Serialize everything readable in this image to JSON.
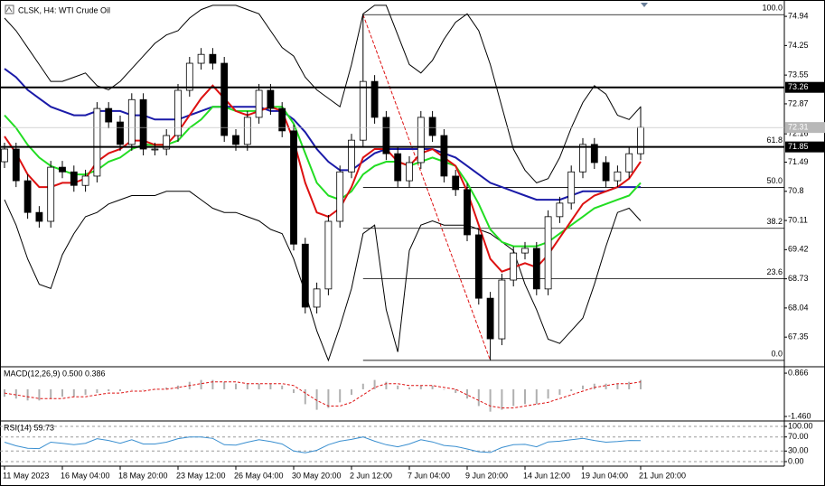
{
  "chart_data": [
    {
      "type": "candlestick",
      "title": "CLSK, H4: WTI Crude Oil",
      "categories": [
        "11 May 2023",
        null,
        null,
        null,
        null,
        "16 May 04:00",
        null,
        null,
        null,
        null,
        "18 May 20:00",
        null,
        null,
        null,
        null,
        "23 May 12:00",
        null,
        null,
        null,
        null,
        "26 May 04:00",
        null,
        null,
        null,
        null,
        "30 May 20:00",
        null,
        null,
        null,
        null,
        "2 Jun 12:00",
        null,
        null,
        null,
        null,
        "7 Jun 04:00",
        null,
        null,
        null,
        null,
        "9 Jun 20:00",
        null,
        null,
        null,
        null,
        "14 Jun 12:00",
        null,
        null,
        null,
        null,
        "19 Jun 04:00",
        null,
        null,
        null,
        null,
        "21 Jun 20:00"
      ],
      "open": [
        71.5,
        71.8,
        71.05,
        70.3,
        70.09,
        71.37,
        71.26,
        70.94,
        71.16,
        72.76,
        72.44,
        71.91,
        72.97,
        71.8,
        71.8,
        72.12,
        73.19,
        73.83,
        74.04,
        73.83,
        72.12,
        71.91,
        72.55,
        73.19,
        72.76,
        72.23,
        69.55,
        68.06,
        68.49,
        70.09,
        71.26,
        72.01,
        73.4,
        72.55,
        71.69,
        71.05,
        71.48,
        72.55,
        72.12,
        71.16,
        70.84,
        69.77,
        68.27,
        67.31,
        68.7,
        69.34,
        69.45,
        68.49,
        70.2,
        70.52,
        71.26,
        71.91,
        71.48,
        71.05,
        71.26,
        71.69
      ],
      "high": [
        71.95,
        71.95,
        71.2,
        70.45,
        71.52,
        71.52,
        71.41,
        71.31,
        72.91,
        72.91,
        72.59,
        73.12,
        73.12,
        71.95,
        72.27,
        73.34,
        73.98,
        74.19,
        74.19,
        73.98,
        72.27,
        72.7,
        73.34,
        73.34,
        72.91,
        72.38,
        69.7,
        68.64,
        70.24,
        71.41,
        72.16,
        74.98,
        73.55,
        72.7,
        71.84,
        71.63,
        72.7,
        72.7,
        72.27,
        71.31,
        70.99,
        69.92,
        68.42,
        68.85,
        69.49,
        69.6,
        69.6,
        70.35,
        70.67,
        71.41,
        72.06,
        72.06,
        71.63,
        71.41,
        71.84,
        72.81
      ],
      "low": [
        71.35,
        70.9,
        70.15,
        69.94,
        69.94,
        71.11,
        70.79,
        70.79,
        71.01,
        72.29,
        71.76,
        71.76,
        71.65,
        71.65,
        71.65,
        71.97,
        73.04,
        73.68,
        73.68,
        71.97,
        71.76,
        71.76,
        72.4,
        72.61,
        72.08,
        69.4,
        67.91,
        67.91,
        68.34,
        69.94,
        71.11,
        71.86,
        72.4,
        71.54,
        70.9,
        70.9,
        71.33,
        71.97,
        71.01,
        70.69,
        69.62,
        68.12,
        66.8,
        67.16,
        68.55,
        69.19,
        68.34,
        68.34,
        70.05,
        70.37,
        71.11,
        71.33,
        70.9,
        70.9,
        71.11,
        71.54
      ],
      "close": [
        71.8,
        71.05,
        70.3,
        70.09,
        71.37,
        71.26,
        70.94,
        71.16,
        72.76,
        72.44,
        71.91,
        72.97,
        71.8,
        71.8,
        72.12,
        73.19,
        73.83,
        74.04,
        73.83,
        72.12,
        71.91,
        72.55,
        73.19,
        72.76,
        72.23,
        69.55,
        68.06,
        68.49,
        70.09,
        71.26,
        72.01,
        73.4,
        72.55,
        71.69,
        71.05,
        71.48,
        72.55,
        72.12,
        71.16,
        70.84,
        69.77,
        68.27,
        67.31,
        68.7,
        69.34,
        69.45,
        68.49,
        70.2,
        70.52,
        71.26,
        71.91,
        71.48,
        71.05,
        71.26,
        71.69,
        72.31
      ],
      "up_color": "#ffffff",
      "down_color": "#000000",
      "overlays": [
        {
          "color": "#000000",
          "values": [
            74.9,
            74.6,
            74.2,
            73.8,
            73.4,
            73.4,
            73.5,
            73.6,
            73.3,
            73.2,
            73.4,
            73.7,
            74.0,
            74.3,
            74.5,
            74.6,
            74.9,
            75.1,
            75.2,
            75.2,
            75.2,
            75.1,
            75.0,
            74.6,
            74.2,
            74.0,
            73.5,
            73.2,
            73.0,
            72.8,
            73.8,
            75.0,
            75.2,
            75.2,
            74.5,
            73.8,
            73.6,
            73.9,
            74.4,
            74.8,
            75.0,
            74.6,
            73.8,
            72.8,
            71.8,
            71.3,
            71.0,
            71.1,
            71.6,
            72.3,
            72.9,
            73.3,
            73.1,
            72.6,
            72.5,
            72.8
          ]
        },
        {
          "color": "#000000",
          "values": [
            70.6,
            70.0,
            69.2,
            68.6,
            68.5,
            69.3,
            69.8,
            70.2,
            70.3,
            70.5,
            70.6,
            70.7,
            70.7,
            70.7,
            70.8,
            70.8,
            70.8,
            70.6,
            70.4,
            70.3,
            70.3,
            70.2,
            70.1,
            69.9,
            69.8,
            69.2,
            68.4,
            67.5,
            66.8,
            67.6,
            68.5,
            69.8,
            70.0,
            68.0,
            67.0,
            69.4,
            70.0,
            70.1,
            70.0,
            70.0,
            70.0,
            69.9,
            69.8,
            69.6,
            69.4,
            68.6,
            68.0,
            67.3,
            67.2,
            67.5,
            67.8,
            68.6,
            69.5,
            70.3,
            70.4,
            70.1
          ]
        },
        {
          "color": "#1a1aa8",
          "values": [
            73.7,
            73.5,
            73.2,
            73.0,
            72.8,
            72.7,
            72.6,
            72.6,
            72.7,
            72.7,
            72.7,
            72.6,
            72.6,
            72.5,
            72.5,
            72.5,
            72.6,
            72.7,
            72.8,
            72.8,
            72.8,
            72.8,
            72.8,
            72.7,
            72.7,
            72.5,
            72.2,
            71.8,
            71.5,
            71.3,
            71.3,
            71.5,
            71.7,
            71.8,
            71.8,
            71.8,
            71.8,
            71.8,
            71.7,
            71.6,
            71.4,
            71.2,
            71.0,
            70.9,
            70.8,
            70.7,
            70.6,
            70.6,
            70.6,
            70.7,
            70.8,
            70.8,
            70.8,
            70.9,
            70.9,
            70.9
          ]
        },
        {
          "color": "#22dd22",
          "values": [
            72.6,
            72.3,
            71.9,
            71.6,
            71.4,
            71.3,
            71.2,
            71.2,
            71.3,
            71.5,
            71.6,
            71.8,
            71.9,
            71.9,
            71.9,
            72.0,
            72.3,
            72.5,
            72.8,
            72.8,
            72.7,
            72.7,
            72.7,
            72.8,
            72.8,
            72.4,
            71.7,
            71.0,
            70.7,
            70.6,
            70.8,
            71.2,
            71.4,
            71.5,
            71.5,
            71.4,
            71.5,
            71.6,
            71.5,
            71.4,
            71.0,
            70.5,
            69.9,
            69.6,
            69.5,
            69.5,
            69.5,
            69.6,
            69.8,
            70.0,
            70.2,
            70.4,
            70.5,
            70.6,
            70.7,
            71.0
          ]
        },
        {
          "color": "#dd1111",
          "values": [
            72.1,
            71.7,
            71.2,
            70.9,
            70.9,
            71.0,
            71.0,
            71.1,
            71.5,
            71.7,
            71.8,
            72.0,
            72.0,
            71.9,
            71.9,
            72.2,
            72.6,
            73.0,
            73.3,
            73.0,
            72.7,
            72.6,
            72.7,
            72.8,
            72.7,
            72.0,
            71.0,
            70.3,
            70.2,
            70.4,
            70.9,
            71.6,
            71.8,
            71.8,
            71.5,
            71.4,
            71.7,
            71.8,
            71.6,
            71.4,
            70.8,
            70.0,
            69.2,
            68.9,
            69.0,
            69.1,
            69.0,
            69.3,
            69.7,
            70.1,
            70.5,
            70.7,
            70.8,
            70.9,
            71.1,
            71.5
          ]
        }
      ],
      "ylim": [
        66.67,
        75.22
      ],
      "yticks": [
        74.94,
        74.25,
        73.55,
        72.87,
        72.16,
        71.49,
        70.8,
        70.11,
        69.42,
        68.73,
        68.04,
        67.35
      ],
      "levels": [
        73.26,
        71.85
      ],
      "last_price": 72.31,
      "fibonacci": {
        "high": 74.98,
        "low": 66.8,
        "color": "#dd1111",
        "levels": [
          {
            "value": 100,
            "label": "100.0"
          },
          {
            "value": 61.8,
            "label": "61.8"
          },
          {
            "value": 50,
            "label": "50.0"
          },
          {
            "value": 38.2,
            "label": "38.2"
          },
          {
            "value": 23.6,
            "label": "23.6"
          },
          {
            "value": 0,
            "label": "0.0"
          }
        ]
      }
    },
    {
      "type": "macd",
      "label": "MACD(12,26,9) 0.500 0.386",
      "histogram": [
        -0.4,
        -0.5,
        -0.6,
        -0.6,
        -0.5,
        -0.4,
        -0.4,
        -0.3,
        -0.2,
        -0.1,
        -0.1,
        0.0,
        0.0,
        0.0,
        0.1,
        0.2,
        0.4,
        0.5,
        0.5,
        0.4,
        0.3,
        0.3,
        0.3,
        0.3,
        0.2,
        -0.2,
        -0.8,
        -1.1,
        -1.0,
        -0.7,
        -0.3,
        0.3,
        0.5,
        0.4,
        0.2,
        0.1,
        0.2,
        0.2,
        0.0,
        -0.2,
        -0.5,
        -0.9,
        -1.2,
        -1.1,
        -0.9,
        -0.8,
        -0.8,
        -0.5,
        -0.3,
        -0.1,
        0.2,
        0.3,
        0.3,
        0.3,
        0.4,
        0.5
      ],
      "signal": [
        -0.2,
        -0.3,
        -0.4,
        -0.5,
        -0.5,
        -0.5,
        -0.4,
        -0.4,
        -0.3,
        -0.2,
        -0.2,
        -0.1,
        -0.1,
        0.0,
        0.0,
        0.1,
        0.2,
        0.3,
        0.4,
        0.4,
        0.4,
        0.3,
        0.3,
        0.3,
        0.3,
        0.2,
        -0.2,
        -0.6,
        -0.9,
        -0.9,
        -0.7,
        -0.3,
        0.1,
        0.3,
        0.3,
        0.2,
        0.2,
        0.2,
        0.1,
        0.0,
        -0.3,
        -0.6,
        -0.9,
        -1.0,
        -1.0,
        -0.9,
        -0.8,
        -0.7,
        -0.5,
        -0.3,
        -0.1,
        0.1,
        0.2,
        0.3,
        0.3,
        0.4
      ],
      "histogram_color": "#b0b0b0",
      "signal_color": "#dd1111",
      "ylim": [
        -1.7,
        1.16
      ],
      "yticks": [
        0.866,
        {
          "value": -1.46,
          "label": "-1.460"
        }
      ]
    },
    {
      "type": "rsi",
      "label": "RSI(14) 59.73",
      "values": [
        55,
        45,
        38,
        37,
        55,
        52,
        48,
        52,
        65,
        60,
        52,
        62,
        50,
        50,
        55,
        65,
        70,
        70,
        66,
        48,
        47,
        55,
        62,
        57,
        50,
        30,
        25,
        32,
        48,
        58,
        63,
        70,
        58,
        48,
        42,
        50,
        62,
        56,
        46,
        43,
        36,
        28,
        26,
        40,
        48,
        49,
        42,
        56,
        58,
        62,
        66,
        60,
        55,
        57,
        60,
        59.73
      ],
      "color": "#3a8fd0",
      "ylim": [
        -12.8,
        112.8
      ],
      "yticks": [
        {
          "value": 100,
          "label": "100.00"
        },
        {
          "value": 70,
          "label": "70.00"
        },
        {
          "value": 30,
          "label": "30.00"
        },
        {
          "value": 0,
          "label": "0.00"
        }
      ]
    }
  ]
}
